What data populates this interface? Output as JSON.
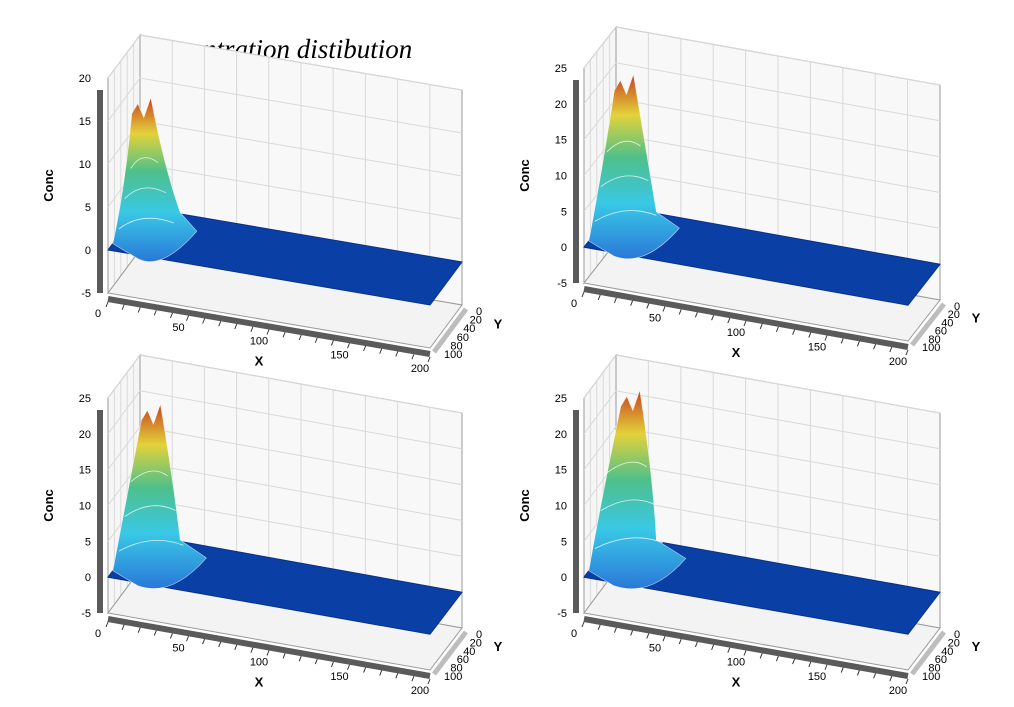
{
  "title": "Concentration distibution",
  "colors": {
    "floor": "#0a3fa6",
    "floor_edge": "#07328a",
    "grid": "#d9d9d9",
    "frame": "#9a9a9a",
    "wall_dark": "#5a5a5a",
    "peak_red": "#c8401e",
    "peak_yellow": "#e3d23a",
    "peak_green": "#4fc08a",
    "peak_cyan": "#39c8e6",
    "peak_blue": "#2a78d8"
  },
  "chart_data": [
    {
      "type": "surface3d",
      "panel": "top-left",
      "xlabel": "X",
      "ylabel": "Y",
      "zlabel": "Conc",
      "x_ticks": [
        "0",
        "50",
        "100",
        "150",
        "200"
      ],
      "y_ticks": [
        "0",
        "20",
        "40",
        "60",
        "80",
        "100"
      ],
      "z_ticks": [
        "-5",
        "0",
        "5",
        "10",
        "15",
        "20"
      ],
      "xlim": [
        0,
        200
      ],
      "ylim": [
        0,
        100
      ],
      "zlim": [
        -5,
        20
      ],
      "peak_conc": 16,
      "peak_x": 15,
      "peak_y": 30
    },
    {
      "type": "surface3d",
      "panel": "top-right",
      "xlabel": "X",
      "ylabel": "Y",
      "zlabel": "Conc",
      "x_ticks": [
        "0",
        "50",
        "100",
        "150",
        "200"
      ],
      "y_ticks": [
        "0",
        "20",
        "40",
        "60",
        "80",
        "100"
      ],
      "z_ticks": [
        "-5",
        "0",
        "5",
        "10",
        "15",
        "20",
        "25"
      ],
      "xlim": [
        0,
        200
      ],
      "ylim": [
        0,
        100
      ],
      "zlim": [
        -5,
        25
      ],
      "peak_conc": 22,
      "peak_x": 18,
      "peak_y": 35
    },
    {
      "type": "surface3d",
      "panel": "bottom-left",
      "xlabel": "X",
      "ylabel": "Y",
      "zlabel": "Conc",
      "x_ticks": [
        "0",
        "50",
        "100",
        "150",
        "200"
      ],
      "y_ticks": [
        "0",
        "20",
        "40",
        "60",
        "80",
        "100"
      ],
      "z_ticks": [
        "-5",
        "0",
        "5",
        "10",
        "15",
        "20",
        "25"
      ],
      "xlim": [
        0,
        200
      ],
      "ylim": [
        0,
        100
      ],
      "zlim": [
        -5,
        25
      ],
      "peak_conc": 22,
      "peak_x": 20,
      "peak_y": 35
    },
    {
      "type": "surface3d",
      "panel": "bottom-right",
      "xlabel": "X",
      "ylabel": "Y",
      "zlabel": "Conc",
      "x_ticks": [
        "0",
        "50",
        "100",
        "150",
        "200"
      ],
      "y_ticks": [
        "0",
        "20",
        "40",
        "60",
        "80",
        "100"
      ],
      "z_ticks": [
        "-5",
        "0",
        "5",
        "10",
        "15",
        "20",
        "25"
      ],
      "xlim": [
        0,
        200
      ],
      "ylim": [
        0,
        100
      ],
      "zlim": [
        -5,
        25
      ],
      "peak_conc": 24,
      "peak_x": 22,
      "peak_y": 35
    }
  ]
}
